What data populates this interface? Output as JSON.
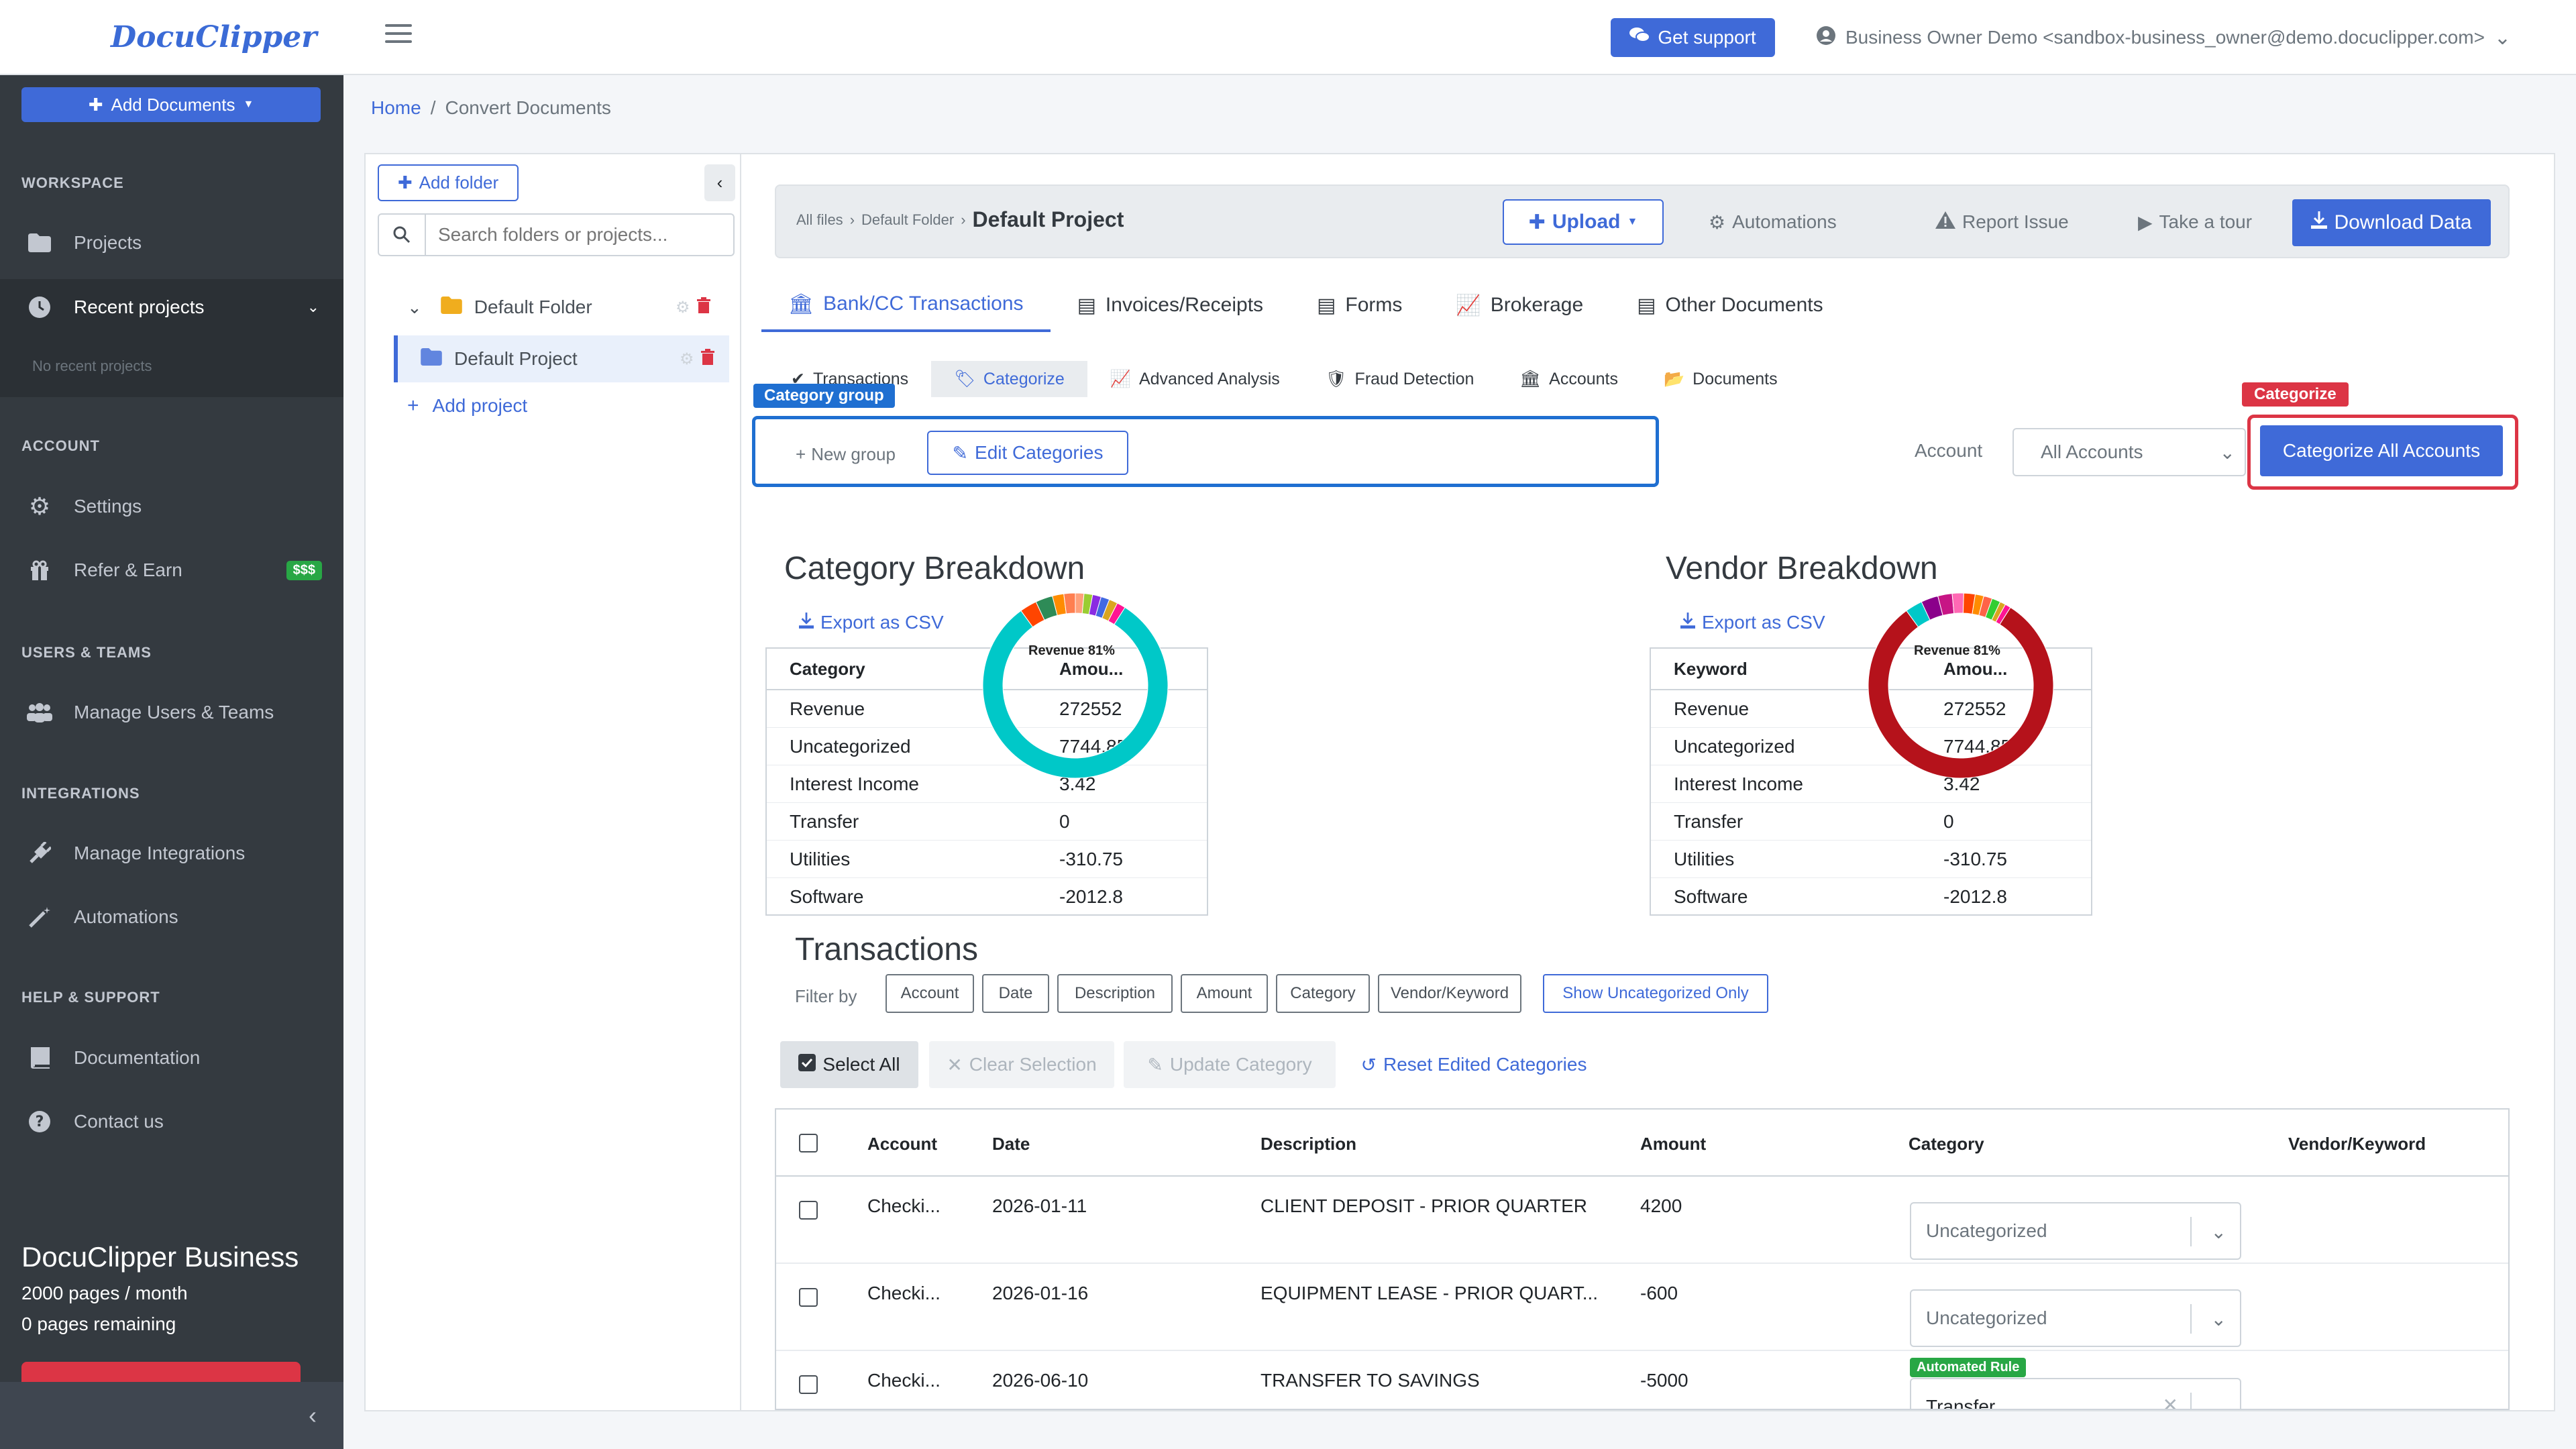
{
  "brand": {
    "logo": "DocuClipper"
  },
  "sidebar": {
    "add_documents": "Add Documents",
    "sections": {
      "workspace": "WORKSPACE",
      "account": "ACCOUNT",
      "users": "USERS & TEAMS",
      "integrations": "INTEGRATIONS",
      "help": "HELP & SUPPORT"
    },
    "items": {
      "projects": "Projects",
      "recent": "Recent projects",
      "no_recent": "No recent projects",
      "settings": "Settings",
      "refer": "Refer & Earn",
      "refer_badge": "$$$",
      "manage_users": "Manage Users & Teams",
      "manage_integrations": "Manage Integrations",
      "automations": "Automations",
      "documentation": "Documentation",
      "contact": "Contact us"
    },
    "plan": {
      "name": "DocuClipper Business",
      "pages_month": "2000 pages / month",
      "remaining": "0 pages remaining"
    }
  },
  "header": {
    "support": "Get support",
    "user": "Business Owner Demo <sandbox-business_owner@demo.docuclipper.com>"
  },
  "breadcrumb": {
    "home": "Home",
    "sep": "/",
    "current": "Convert Documents"
  },
  "tree": {
    "add_folder": "Add folder",
    "search_placeholder": "Search folders or projects...",
    "folder": "Default Folder",
    "project": "Default Project",
    "add_project": "Add project"
  },
  "toolbar": {
    "crumb_all": "All files",
    "crumb_folder": "Default Folder",
    "crumb_project": "Default Project",
    "upload": "Upload",
    "automations": "Automations",
    "report": "Report Issue",
    "tour": "Take a tour",
    "download": "Download Data"
  },
  "tabs": [
    "Bank/CC Transactions",
    "Invoices/Receipts",
    "Forms",
    "Brokerage",
    "Other Documents"
  ],
  "subtabs": [
    "Transactions",
    "Categorize",
    "Advanced Analysis",
    "Fraud Detection",
    "Accounts",
    "Documents"
  ],
  "categorize": {
    "group_label": "Category group",
    "new_group": "New group",
    "edit_categories": "Edit Categories",
    "account_label": "Account",
    "account_value": "All Accounts",
    "highlight_label": "Categorize",
    "categorize_all": "Categorize All Accounts"
  },
  "category_breakdown": {
    "title": "Category Breakdown",
    "export": "Export as CSV",
    "col1": "Category",
    "col2": "Amou...",
    "rows": [
      {
        "name": "Revenue",
        "amount": "272552"
      },
      {
        "name": "Uncategorized",
        "amount": "7744.85"
      },
      {
        "name": "Interest Income",
        "amount": "3.42"
      },
      {
        "name": "Transfer",
        "amount": "0"
      },
      {
        "name": "Utilities",
        "amount": "-310.75"
      },
      {
        "name": "Software",
        "amount": "-2012.8"
      }
    ],
    "donut_label": "Revenue 81%"
  },
  "vendor_breakdown": {
    "title": "Vendor Breakdown",
    "export": "Export as CSV",
    "col1": "Keyword",
    "col2": "Amou...",
    "rows": [
      {
        "name": "Revenue",
        "amount": "272552"
      },
      {
        "name": "Uncategorized",
        "amount": "7744.85"
      },
      {
        "name": "Interest Income",
        "amount": "3.42"
      },
      {
        "name": "Transfer",
        "amount": "0"
      },
      {
        "name": "Utilities",
        "amount": "-310.75"
      },
      {
        "name": "Software",
        "amount": "-2012.8"
      }
    ],
    "donut_label": "Revenue 81%"
  },
  "colors": {
    "accent": "#3f6ad8",
    "cat_main": "#00c8c8",
    "vendor_main": "#b5121b",
    "highlight_blue": "#1f6fd1",
    "highlight_red": "#dc3545"
  },
  "donut_cat_slices": [
    {
      "pct": 81,
      "color": "#00c8c8"
    },
    {
      "pct": 3,
      "color": "#ff4500"
    },
    {
      "pct": 3,
      "color": "#2e8b57"
    },
    {
      "pct": 2,
      "color": "#ff8c00"
    },
    {
      "pct": 2,
      "color": "#ff7f50"
    },
    {
      "pct": 1.5,
      "color": "#ffa07a"
    },
    {
      "pct": 1.5,
      "color": "#9acd32"
    },
    {
      "pct": 1.5,
      "color": "#8a2be2"
    },
    {
      "pct": 1.5,
      "color": "#4169e1"
    },
    {
      "pct": 1.5,
      "color": "#daa520"
    },
    {
      "pct": 1.5,
      "color": "#ff1493"
    }
  ],
  "donut_vendor_slices": [
    {
      "pct": 81,
      "color": "#b5121b"
    },
    {
      "pct": 3,
      "color": "#00c8c8"
    },
    {
      "pct": 3,
      "color": "#8b008b"
    },
    {
      "pct": 2.5,
      "color": "#c71585"
    },
    {
      "pct": 2,
      "color": "#ff69b4"
    },
    {
      "pct": 2,
      "color": "#ff4500"
    },
    {
      "pct": 1.5,
      "color": "#ff8c00"
    },
    {
      "pct": 1.5,
      "color": "#ff6347"
    },
    {
      "pct": 1.5,
      "color": "#32cd32"
    },
    {
      "pct": 1,
      "color": "#daa520"
    },
    {
      "pct": 1,
      "color": "#ff1493"
    }
  ],
  "transactions": {
    "title": "Transactions",
    "filter_by": "Filter by",
    "filters": [
      "Account",
      "Date",
      "Description",
      "Amount",
      "Category",
      "Vendor/Keyword"
    ],
    "show_uncategorized": "Show Uncategorized Only",
    "select_all": "Select All",
    "clear_selection": "Clear Selection",
    "update_category": "Update Category",
    "reset": "Reset Edited Categories",
    "columns": [
      "Account",
      "Date",
      "Description",
      "Amount",
      "Category",
      "Vendor/Keyword"
    ],
    "rows": [
      {
        "account": "Checki...",
        "date": "2026-01-11",
        "description": "CLIENT DEPOSIT - PRIOR QUARTER",
        "amount": "4200",
        "category": "Uncategorized"
      },
      {
        "account": "Checki...",
        "date": "2026-01-16",
        "description": "EQUIPMENT LEASE - PRIOR QUART...",
        "amount": "-600",
        "category": "Uncategorized"
      },
      {
        "account": "Checki...",
        "date": "2026-06-10",
        "description": "TRANSFER TO SAVINGS",
        "amount": "-5000",
        "category": "Transfer",
        "rule": "Automated Rule"
      }
    ]
  }
}
